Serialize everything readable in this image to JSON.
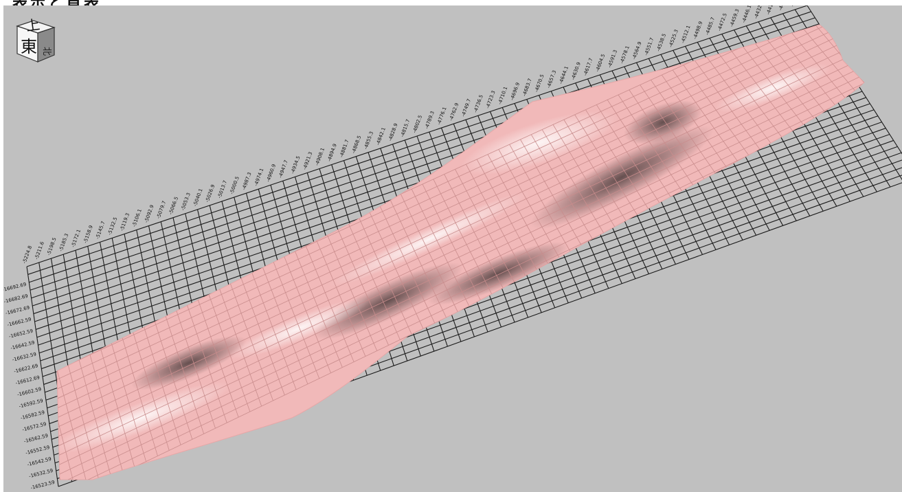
{
  "window": {
    "title_fragment": "表示と頁表"
  },
  "orientation_cube": {
    "face_top": "上",
    "face_front": "東",
    "face_right": "北"
  },
  "colors": {
    "viewport_bg": "#c0c0c0",
    "grid_line": "#1a1a1a",
    "surface_base": "#f1b9b9",
    "surface_light": "#fbe6e6",
    "surface_dark": "#5a4848",
    "mesh_line": "#c98d8d"
  },
  "axis_labels": {
    "y_axis": [
      "-16692.69",
      "-16682.69",
      "-16672.69",
      "-16662.59",
      "-16652.59",
      "-16642.59",
      "-16632.59",
      "-16622.69",
      "-16612.69",
      "-16602.59",
      "-16592.59",
      "-16582.59",
      "-16572.59",
      "-16562.59",
      "-16552.59",
      "-16542.59",
      "-16532.59",
      "-16523.59"
    ],
    "x_axis": [
      "-5224.8",
      "-5211.6",
      "-5198.5",
      "-5185.3",
      "-5172.1",
      "-5158.9",
      "-5145.7",
      "-5132.5",
      "-5119.3",
      "-5106.1",
      "-5092.9",
      "-5079.7",
      "-5066.5",
      "-5053.3",
      "-5040.1",
      "-5026.9",
      "-5013.7",
      "-5000.5",
      "-4987.3",
      "-4974.1",
      "-4960.9",
      "-4947.7",
      "-4934.5",
      "-4921.3",
      "-4908.1",
      "-4894.9",
      "-4881.7",
      "-4868.5",
      "-4855.3",
      "-4842.1",
      "-4828.9",
      "-4815.7",
      "-4802.5",
      "-4789.3",
      "-4776.1",
      "-4762.9",
      "-4749.7",
      "-4736.5",
      "-4723.3",
      "-4710.1",
      "-4696.9",
      "-4683.7",
      "-4670.5",
      "-4657.3",
      "-4644.1",
      "-4630.9",
      "-4617.7",
      "-4604.5",
      "-4591.3",
      "-4578.1",
      "-4564.9",
      "-4551.7",
      "-4538.5",
      "-4525.3",
      "-4512.1",
      "-4498.9",
      "-4485.7",
      "-4472.5",
      "-4459.3",
      "-4446.1",
      "-4432.9",
      "-4419.7",
      "-4406.5",
      "-4393.3",
      "-4380.1"
    ]
  }
}
